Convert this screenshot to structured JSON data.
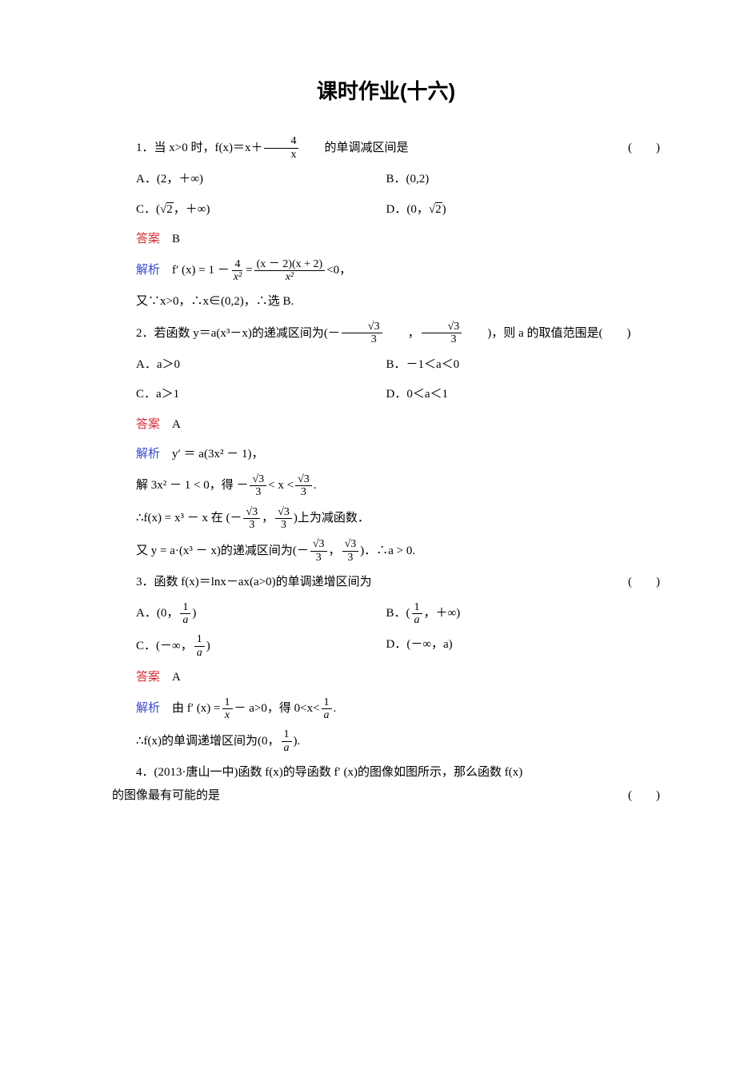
{
  "title": "课时作业(十六)",
  "q1": {
    "stem_pre": "1．当 x>0 时，f(x)＝x＋",
    "frac_num": "4",
    "frac_den": "x",
    "stem_post": "的单调减区间是",
    "optA": "A．(2，＋∞)",
    "optB": "B．(0,2)",
    "optC_pre": "C．(",
    "optC_sqrt": "2",
    "optC_post": "，＋∞)",
    "optD_pre": "D．(0，",
    "optD_sqrt": "2",
    "optD_post": ")",
    "answer_label": "答案",
    "answer": "B",
    "analysis_label": "解析",
    "ana1_pre": "f′ (x) = 1 －",
    "ana1_f1n": "4",
    "ana1_f1d": "x²",
    "ana1_mid": " = ",
    "ana1_f2n": "(x － 2)(x + 2)",
    "ana1_f2d": "x²",
    "ana1_post": "<0，",
    "ana2": "又∵x>0，∴x∈(0,2)，∴选 B."
  },
  "q2": {
    "stem_pre": "2．若函数 y＝a(x³－x)的递减区间为(－",
    "f1n": "√3",
    "f1d": "3",
    "stem_mid": "，",
    "f2n": "√3",
    "f2d": "3",
    "stem_post": ")，则 a 的取值范围是(　　)",
    "optA": "A．a＞0",
    "optB": "B．－1＜a＜0",
    "optC": "C．a＞1",
    "optD": "D．0＜a＜1",
    "answer_label": "答案",
    "answer": "A",
    "analysis_label": "解析",
    "ana1": "y′ ＝ a(3x² － 1)，",
    "ana2_pre": "解 3x² － 1 < 0，得 －",
    "ana2_f1n": "√3",
    "ana2_f1d": "3",
    "ana2_mid": " < x < ",
    "ana2_f2n": "√3",
    "ana2_f2d": "3",
    "ana2_post": ".",
    "ana3_pre": "∴f(x) = x³ － x 在 (－",
    "ana3_f1n": "√3",
    "ana3_f1d": "3",
    "ana3_mid": "，",
    "ana3_f2n": "√3",
    "ana3_f2d": "3",
    "ana3_post": ")上为减函数．",
    "ana4_pre": "又 y = a·(x³ － x)的递减区间为(－",
    "ana4_f1n": "√3",
    "ana4_f1d": "3",
    "ana4_mid": "，",
    "ana4_f2n": "√3",
    "ana4_f2d": "3",
    "ana4_post": ")．∴a > 0."
  },
  "q3": {
    "stem": "3．函数 f(x)＝lnx－ax(a>0)的单调递增区间为",
    "optA_pre": "A．(0，",
    "optA_fn": "1",
    "optA_fd": "a",
    "optA_post": ")",
    "optB_pre": "B．(",
    "optB_fn": "1",
    "optB_fd": "a",
    "optB_post": "，＋∞)",
    "optC_pre": "C．(－∞，",
    "optC_fn": "1",
    "optC_fd": "a",
    "optC_post": ")",
    "optD": "D．(－∞，a)",
    "answer_label": "答案",
    "answer": "A",
    "analysis_label": "解析",
    "ana1_pre": "由 f′ (x) = ",
    "ana1_f1n": "1",
    "ana1_f1d": "x",
    "ana1_mid": " － a>0，得 0<x<",
    "ana1_f2n": "1",
    "ana1_f2d": "a",
    "ana1_post": ".",
    "ana2_pre": "∴f(x)的单调递增区间为(0，",
    "ana2_fn": "1",
    "ana2_fd": "a",
    "ana2_post": ")."
  },
  "q4": {
    "line1": "4．(2013·唐山一中)函数 f(x)的导函数 f′ (x)的图像如图所示，那么函数 f(x)",
    "line2": "的图像最有可能的是"
  },
  "paren": "(　　)"
}
